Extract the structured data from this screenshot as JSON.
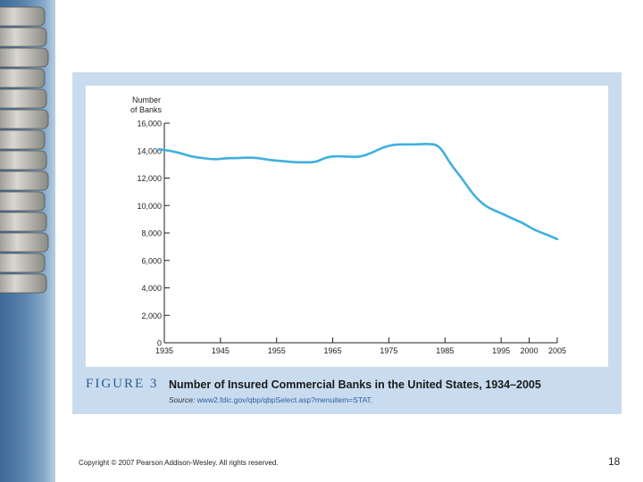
{
  "colors": {
    "line": "#3fb0e0",
    "accent": "#2d5c92",
    "panel_bg": "#c9dcef",
    "axis": "#222222"
  },
  "figure": {
    "label": "FIGURE 3",
    "title": "Number of Insured Commercial Banks in the United States, 1934–2005",
    "source_label": "Source:",
    "source_url": "www2.fdic.gov/qbp/qbpSelect.asp?menuitem=STAT."
  },
  "footer": {
    "copyright": "Copyright © 2007 Pearson Addison-Wesley. All rights reserved.",
    "page_number": "18"
  },
  "chart_data": {
    "type": "line",
    "title": "Number of Insured Commercial Banks in the United States, 1934–2005",
    "xlabel": "",
    "ylabel_lines": [
      "Number",
      "of Banks"
    ],
    "xlim": [
      1935,
      2005
    ],
    "ylim": [
      0,
      16000
    ],
    "x_ticks": [
      1935,
      1945,
      1955,
      1965,
      1975,
      1985,
      1995,
      2000,
      2005
    ],
    "x_tick_labels": [
      "1935",
      "1945",
      "1955",
      "1965",
      "1975",
      "1985",
      "1995",
      "2000",
      "2005"
    ],
    "y_ticks": [
      0,
      2000,
      4000,
      6000,
      8000,
      10000,
      12000,
      14000,
      16000
    ],
    "y_tick_labels": [
      "0",
      "2,000",
      "4,000",
      "6,000",
      "8,000",
      "10,000",
      "12,000",
      "14,000",
      "16,000"
    ],
    "series": [
      {
        "name": "Insured commercial banks",
        "x": [
          1934,
          1936,
          1938,
          1940,
          1942,
          1944,
          1946,
          1948,
          1950,
          1952,
          1954,
          1956,
          1958,
          1960,
          1962,
          1964,
          1966,
          1968,
          1970,
          1972,
          1974,
          1976,
          1978,
          1980,
          1982,
          1984,
          1986,
          1988,
          1990,
          1992,
          1994,
          1995,
          1997,
          1999,
          2001,
          2003,
          2005
        ],
        "values": [
          14100,
          14000,
          13800,
          13550,
          13450,
          13350,
          13450,
          13450,
          13500,
          13450,
          13300,
          13250,
          13150,
          13150,
          13150,
          13550,
          13600,
          13550,
          13550,
          13850,
          14250,
          14450,
          14450,
          14450,
          14500,
          14400,
          13000,
          12000,
          10800,
          10000,
          9600,
          9450,
          9050,
          8700,
          8200,
          7900,
          7550
        ]
      }
    ]
  }
}
